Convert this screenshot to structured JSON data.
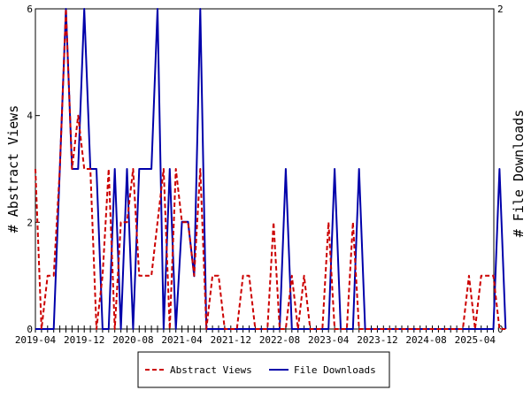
{
  "chart_data": {
    "type": "line",
    "title": "",
    "xlabel": "",
    "x_ticks": [
      "2019-04",
      "2019-12",
      "2020-08",
      "2021-04",
      "2021-12",
      "2022-08",
      "2023-04",
      "2023-12",
      "2024-08",
      "2025-04"
    ],
    "y_left": {
      "label": "# Abstract Views",
      "ticks": [
        "0",
        "2",
        "4",
        "6"
      ],
      "range": [
        0,
        6
      ]
    },
    "y_right": {
      "label": "# File Downloads",
      "ticks": [
        "0",
        "2"
      ],
      "range": [
        0,
        2
      ]
    },
    "legend": {
      "position": "bottom-center"
    },
    "series": [
      {
        "name": "Abstract Views",
        "axis": "left",
        "color": "#cc0000",
        "style": "dashed",
        "x": [
          "2019-04",
          "2019-05",
          "2019-06",
          "2019-07",
          "2019-08",
          "2019-09",
          "2019-10",
          "2019-11",
          "2019-12",
          "2020-01",
          "2020-02",
          "2020-03",
          "2020-04",
          "2020-05",
          "2020-06",
          "2020-07",
          "2020-08",
          "2020-09",
          "2020-10",
          "2020-11",
          "2020-12",
          "2021-01",
          "2021-02",
          "2021-03",
          "2021-04",
          "2021-05",
          "2021-06",
          "2021-07",
          "2021-08",
          "2021-09",
          "2021-10",
          "2021-11",
          "2021-12",
          "2022-01",
          "2022-02",
          "2022-03",
          "2022-04",
          "2022-05",
          "2022-06",
          "2022-07",
          "2022-08",
          "2022-09",
          "2022-10",
          "2022-11",
          "2022-12",
          "2023-01",
          "2023-02",
          "2023-03",
          "2023-04",
          "2023-05",
          "2023-06",
          "2023-07",
          "2023-08",
          "2023-09",
          "2023-10",
          "2023-11",
          "2023-12",
          "2024-01",
          "2024-02",
          "2024-03",
          "2024-04",
          "2024-05",
          "2024-06",
          "2024-07",
          "2024-08",
          "2024-09",
          "2024-10",
          "2024-11",
          "2024-12",
          "2025-01",
          "2025-02",
          "2025-03",
          "2025-04",
          "2025-05",
          "2025-06",
          "2025-07",
          "2025-08",
          "2025-09"
        ],
        "values": [
          3,
          0,
          1,
          1,
          3,
          6,
          3,
          4,
          3,
          3,
          0,
          1,
          3,
          0,
          2,
          2,
          3,
          1,
          1,
          1,
          2,
          3,
          0,
          3,
          2,
          2,
          1,
          3,
          0,
          1,
          1,
          0,
          0,
          0,
          1,
          1,
          0,
          0,
          0,
          2,
          0,
          0,
          1,
          0,
          1,
          0,
          0,
          0,
          2,
          0,
          0,
          0,
          2,
          0,
          0,
          0,
          0,
          0,
          0,
          0,
          0,
          0,
          0,
          0,
          0,
          0,
          0,
          0,
          0,
          0,
          0,
          1,
          0,
          1,
          1,
          1,
          0,
          0
        ]
      },
      {
        "name": "File Downloads",
        "axis": "right",
        "color": "#0000aa",
        "style": "solid",
        "x": [
          "2019-04",
          "2019-05",
          "2019-06",
          "2019-07",
          "2019-08",
          "2019-09",
          "2019-10",
          "2019-11",
          "2019-12",
          "2020-01",
          "2020-02",
          "2020-03",
          "2020-04",
          "2020-05",
          "2020-06",
          "2020-07",
          "2020-08",
          "2020-09",
          "2020-10",
          "2020-11",
          "2020-12",
          "2021-01",
          "2021-02",
          "2021-03",
          "2021-04",
          "2021-05",
          "2021-06",
          "2021-07",
          "2021-08",
          "2021-09",
          "2021-10",
          "2021-11",
          "2021-12",
          "2022-01",
          "2022-02",
          "2022-03",
          "2022-04",
          "2022-05",
          "2022-06",
          "2022-07",
          "2022-08",
          "2022-09",
          "2022-10",
          "2022-11",
          "2022-12",
          "2023-01",
          "2023-02",
          "2023-03",
          "2023-04",
          "2023-05",
          "2023-06",
          "2023-07",
          "2023-08",
          "2023-09",
          "2023-10",
          "2023-11",
          "2023-12",
          "2024-01",
          "2024-02",
          "2024-03",
          "2024-04",
          "2024-05",
          "2024-06",
          "2024-07",
          "2024-08",
          "2024-09",
          "2024-10",
          "2024-11",
          "2024-12",
          "2025-01",
          "2025-02",
          "2025-03",
          "2025-04",
          "2025-05",
          "2025-06",
          "2025-07",
          "2025-08",
          "2025-09"
        ],
        "values": [
          0,
          0,
          0,
          0,
          1,
          2,
          1,
          1,
          2,
          1,
          1,
          0,
          0,
          1,
          0,
          1,
          0,
          1,
          1,
          1,
          2,
          0,
          1,
          0,
          0.67,
          0.67,
          0.33,
          2,
          0,
          0,
          0,
          0,
          0,
          0,
          0,
          0,
          0,
          0,
          0,
          0,
          0,
          1,
          0,
          0,
          0,
          0,
          0,
          0,
          0,
          1,
          0,
          0,
          0,
          1,
          0,
          0,
          0,
          0,
          0,
          0,
          0,
          0,
          0,
          0,
          0,
          0,
          0,
          0,
          0,
          0,
          0,
          0,
          0,
          0,
          0,
          0,
          1,
          0
        ]
      }
    ]
  }
}
